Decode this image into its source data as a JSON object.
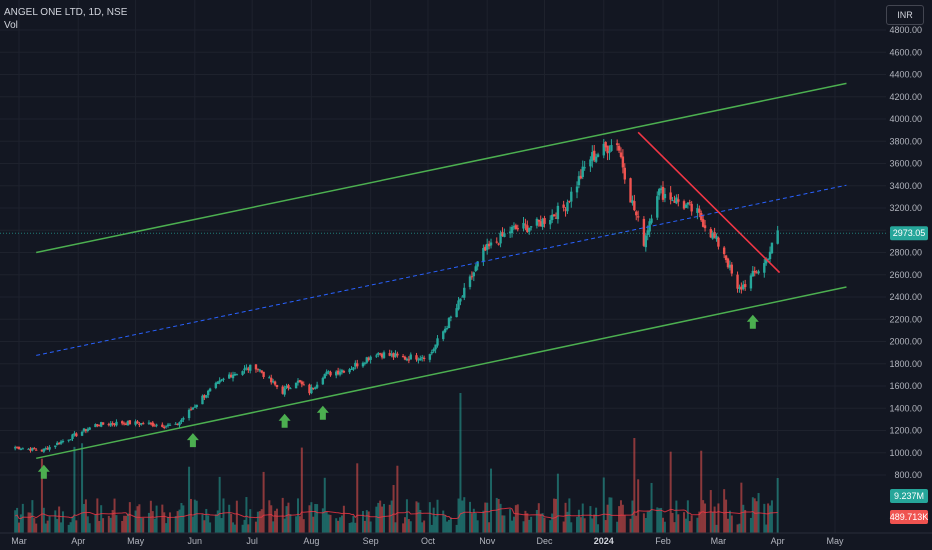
{
  "header": {
    "title": "ANGEL ONE LTD, 1D, NSE",
    "indicator": "Vol"
  },
  "currency_button": "INR",
  "colors": {
    "up": "#26a69a",
    "down": "#ef5350",
    "channel": "#4caf50",
    "trendline": "#f23645",
    "midline": "#2962ff",
    "volume_ma": "#f23645",
    "arrow": "#4caf50"
  },
  "chart_data": {
    "type": "candlestick",
    "title": "ANGEL ONE LTD, 1D, NSE",
    "y_axis": {
      "min": 700,
      "max": 4950,
      "ticks": [
        800,
        1000,
        1200,
        1400,
        1600,
        1800,
        2000,
        2200,
        2400,
        2600,
        2800,
        3000,
        3200,
        3400,
        3600,
        3800,
        4000,
        4200,
        4400,
        4600,
        4800
      ]
    },
    "x_axis": {
      "labels": [
        "Mar",
        "Apr",
        "May",
        "Jun",
        "Jul",
        "Aug",
        "Sep",
        "Oct",
        "Nov",
        "Dec",
        "2024",
        "Feb",
        "Mar",
        "Apr",
        "May"
      ]
    },
    "last_price": 2973.05,
    "last_price_label": "2973.05",
    "volume_label": "9.237M",
    "volume_ma_label": "489.713K",
    "price_path": [
      [
        "2023-02-27",
        1050
      ],
      [
        "2023-03-13",
        1020
      ],
      [
        "2023-03-27",
        1130
      ],
      [
        "2023-04-10",
        1250
      ],
      [
        "2023-04-24",
        1270
      ],
      [
        "2023-05-08",
        1260
      ],
      [
        "2023-05-22",
        1240
      ],
      [
        "2023-06-05",
        1500
      ],
      [
        "2023-06-19",
        1700
      ],
      [
        "2023-07-03",
        1780
      ],
      [
        "2023-07-10",
        1650
      ],
      [
        "2023-07-17",
        1550
      ],
      [
        "2023-07-24",
        1650
      ],
      [
        "2023-07-31",
        1550
      ],
      [
        "2023-08-07",
        1700
      ],
      [
        "2023-08-21",
        1760
      ],
      [
        "2023-09-04",
        1900
      ],
      [
        "2023-09-18",
        1850
      ],
      [
        "2023-10-02",
        1880
      ],
      [
        "2023-10-16",
        2300
      ],
      [
        "2023-10-30",
        2800
      ],
      [
        "2023-11-13",
        3000
      ],
      [
        "2023-11-27",
        3050
      ],
      [
        "2023-12-11",
        3200
      ],
      [
        "2023-12-25",
        3650
      ],
      [
        "2024-01-08",
        3800
      ],
      [
        "2024-01-15",
        3300
      ],
      [
        "2024-01-22",
        2900
      ],
      [
        "2024-01-29",
        3350
      ],
      [
        "2024-02-05",
        3300
      ],
      [
        "2024-02-19",
        3150
      ],
      [
        "2024-03-04",
        2800
      ],
      [
        "2024-03-11",
        2450
      ],
      [
        "2024-03-25",
        2700
      ],
      [
        "2024-04-01",
        2973
      ]
    ],
    "volume_spikes": [
      {
        "date": "2023-10-18",
        "label": "highest spike"
      },
      {
        "date": "2024-01-17",
        "label": "spike"
      },
      {
        "date": "2024-04-01",
        "label": "last bar"
      }
    ],
    "drawings": {
      "channel_upper": [
        [
          "2023-03-10",
          2800
        ],
        [
          "2024-05-07",
          4320
        ]
      ],
      "channel_lower": [
        [
          "2023-03-10",
          950
        ],
        [
          "2024-05-07",
          2490
        ]
      ],
      "channel_mid": [
        [
          "2023-03-10",
          1875
        ],
        [
          "2024-05-07",
          3405
        ]
      ],
      "downtrend": [
        [
          "2024-01-19",
          3880
        ],
        [
          "2024-04-02",
          2620
        ]
      ],
      "support_arrows": [
        "2023-03-14",
        "2023-05-31",
        "2023-07-18",
        "2023-08-07",
        "2024-03-19"
      ]
    }
  }
}
